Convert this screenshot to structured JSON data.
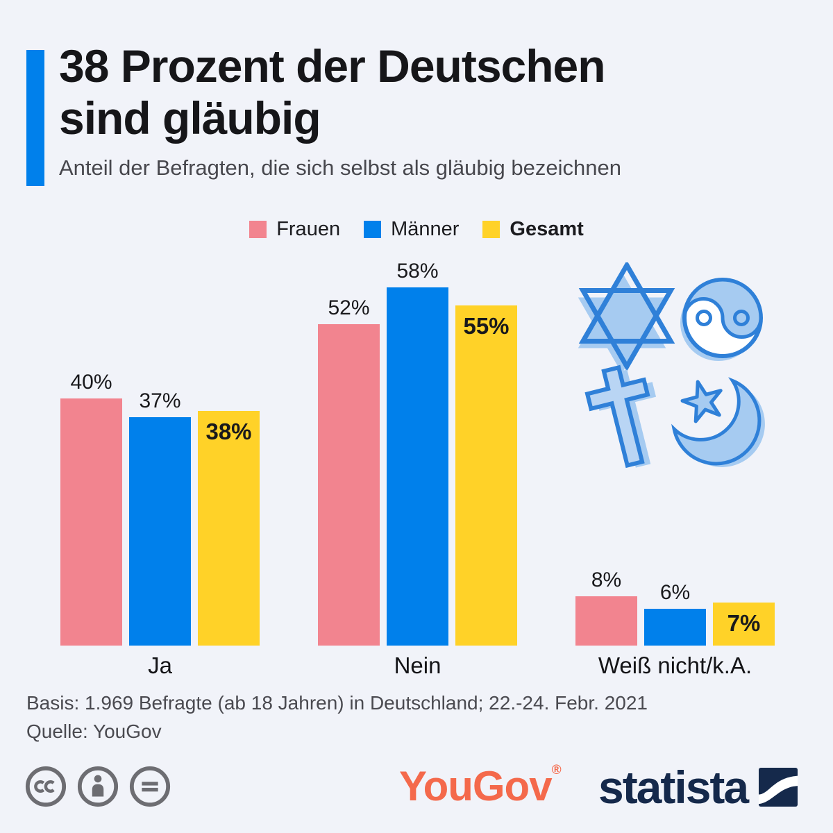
{
  "header": {
    "title_line1": "38 Prozent der Deutschen",
    "title_line2": "sind gläubig",
    "subtitle": "Anteil der Befragten, die sich selbst als gläubig bezeichnen",
    "accent_color": "#0080eb"
  },
  "chart_data": {
    "type": "bar",
    "title": "38 Prozent der Deutschen sind gläubig",
    "subtitle": "Anteil der Befragten, die sich selbst als gläubig bezeichnen",
    "categories": [
      "Ja",
      "Nein",
      "Weiß nicht/k.A."
    ],
    "series": [
      {
        "name": "Frauen",
        "color": "#f2848f",
        "values": [
          40,
          52,
          8
        ]
      },
      {
        "name": "Männer",
        "color": "#0080eb",
        "values": [
          37,
          58,
          6
        ]
      },
      {
        "name": "Gesamt",
        "color": "#ffd228",
        "values": [
          38,
          55,
          7
        ],
        "emphasis": true
      }
    ],
    "value_suffix": "%",
    "ylim": [
      0,
      65
    ],
    "grid": false,
    "legend_position": "top"
  },
  "illustration": {
    "name": "religious-symbols",
    "symbols": [
      "star-of-david",
      "yin-yang",
      "cross",
      "star-and-crescent"
    ],
    "stroke_color": "#2f80d8",
    "fill_color": "#a6cbf1"
  },
  "footer": {
    "basis": "Basis: 1.969 Befragte (ab 18 Jahren) in Deutschland; 22.-24. Febr. 2021",
    "source": "Quelle: YouGov"
  },
  "branding": {
    "license_icons": [
      "cc",
      "by",
      "nd"
    ],
    "yougov_label": "YouGov",
    "yougov_reg_mark": "®",
    "yougov_color": "#f4694b",
    "statista_label": "statista",
    "statista_color": "#15294b"
  },
  "colors": {
    "background": "#f1f3f9",
    "text": "#161619",
    "muted": "#4a4a50"
  }
}
